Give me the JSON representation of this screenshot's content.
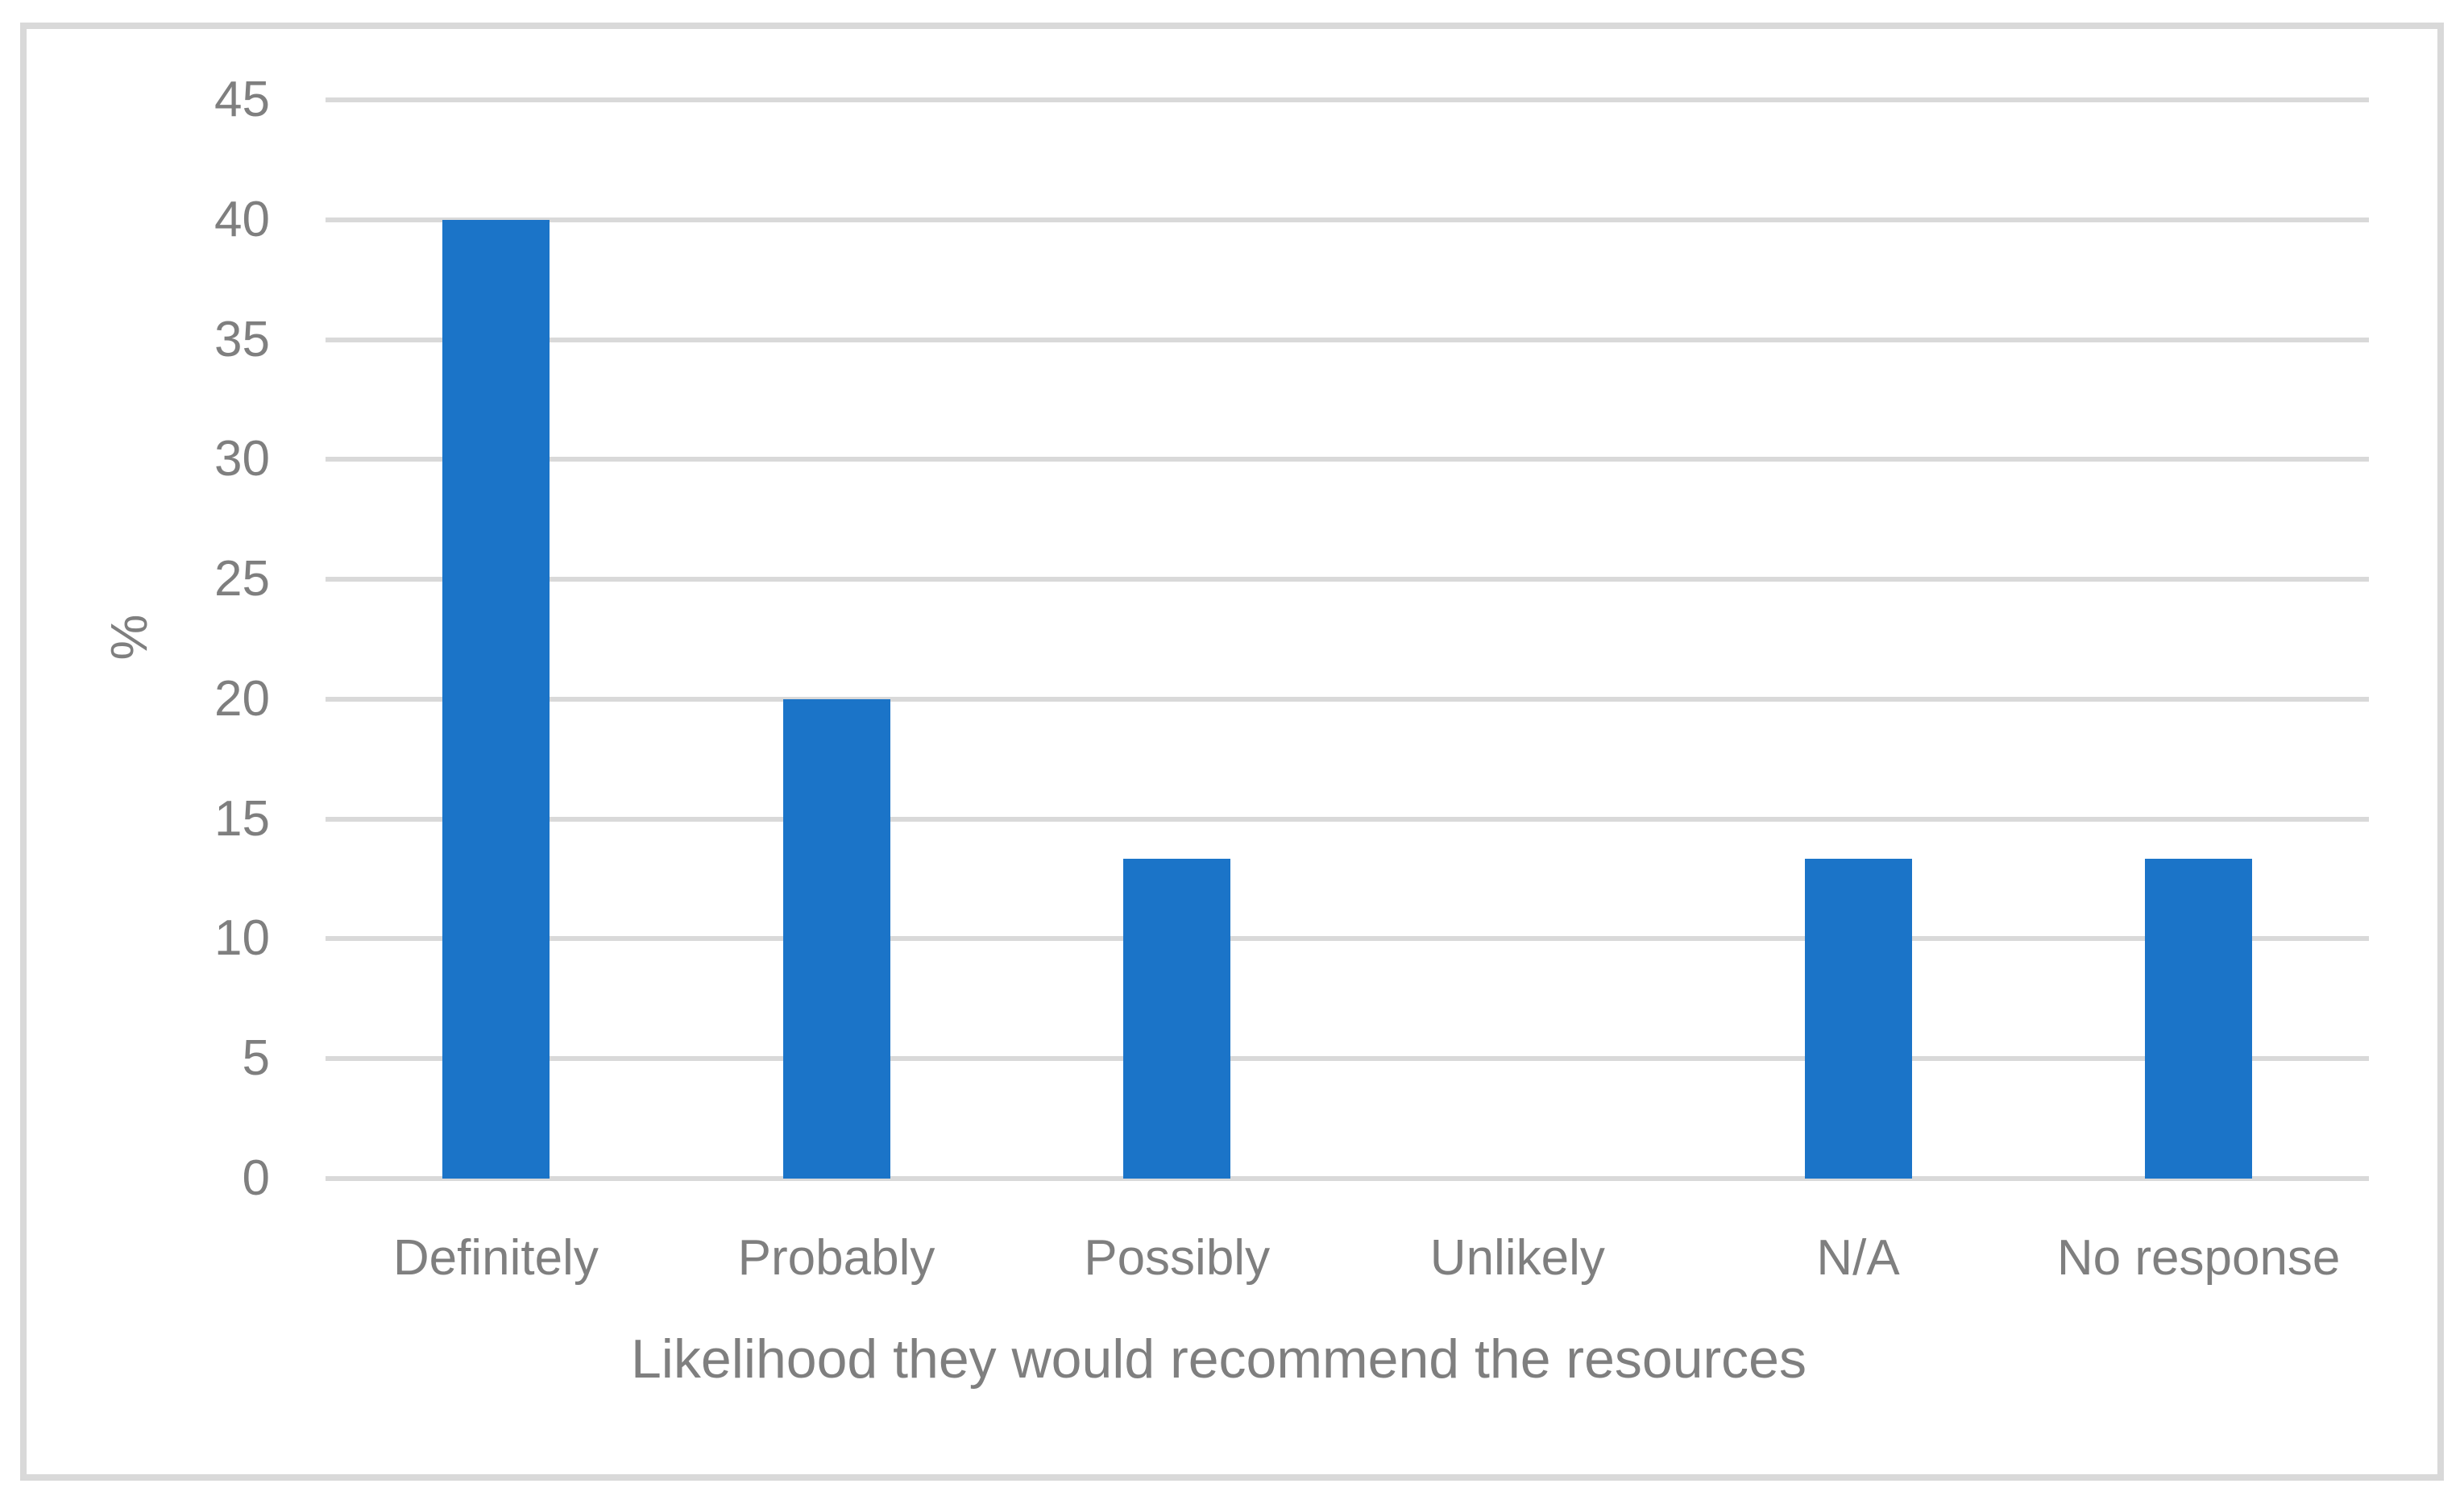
{
  "chart_data": {
    "type": "bar",
    "title": "",
    "categories": [
      "Definitely",
      "Probably",
      "Possibly",
      "Unlikely",
      "N/A",
      "No response"
    ],
    "values": [
      40,
      20,
      13.33,
      0,
      13.33,
      13.33
    ],
    "xlabel": "Likelihood they would recommend the resources",
    "ylabel": "%",
    "ylim": [
      0,
      45
    ],
    "yticks": [
      "0",
      "5",
      "10",
      "15",
      "20",
      "25",
      "30",
      "35",
      "40",
      "45"
    ],
    "ytick_values": [
      0,
      5,
      10,
      15,
      20,
      25,
      30,
      35,
      40,
      45
    ],
    "grid": true,
    "legend": false,
    "colors": {
      "bar": "#1B74C8",
      "gridline": "#D9D9D9",
      "frame_border": "#D9D9D9",
      "text": "#7F7F7F"
    }
  }
}
